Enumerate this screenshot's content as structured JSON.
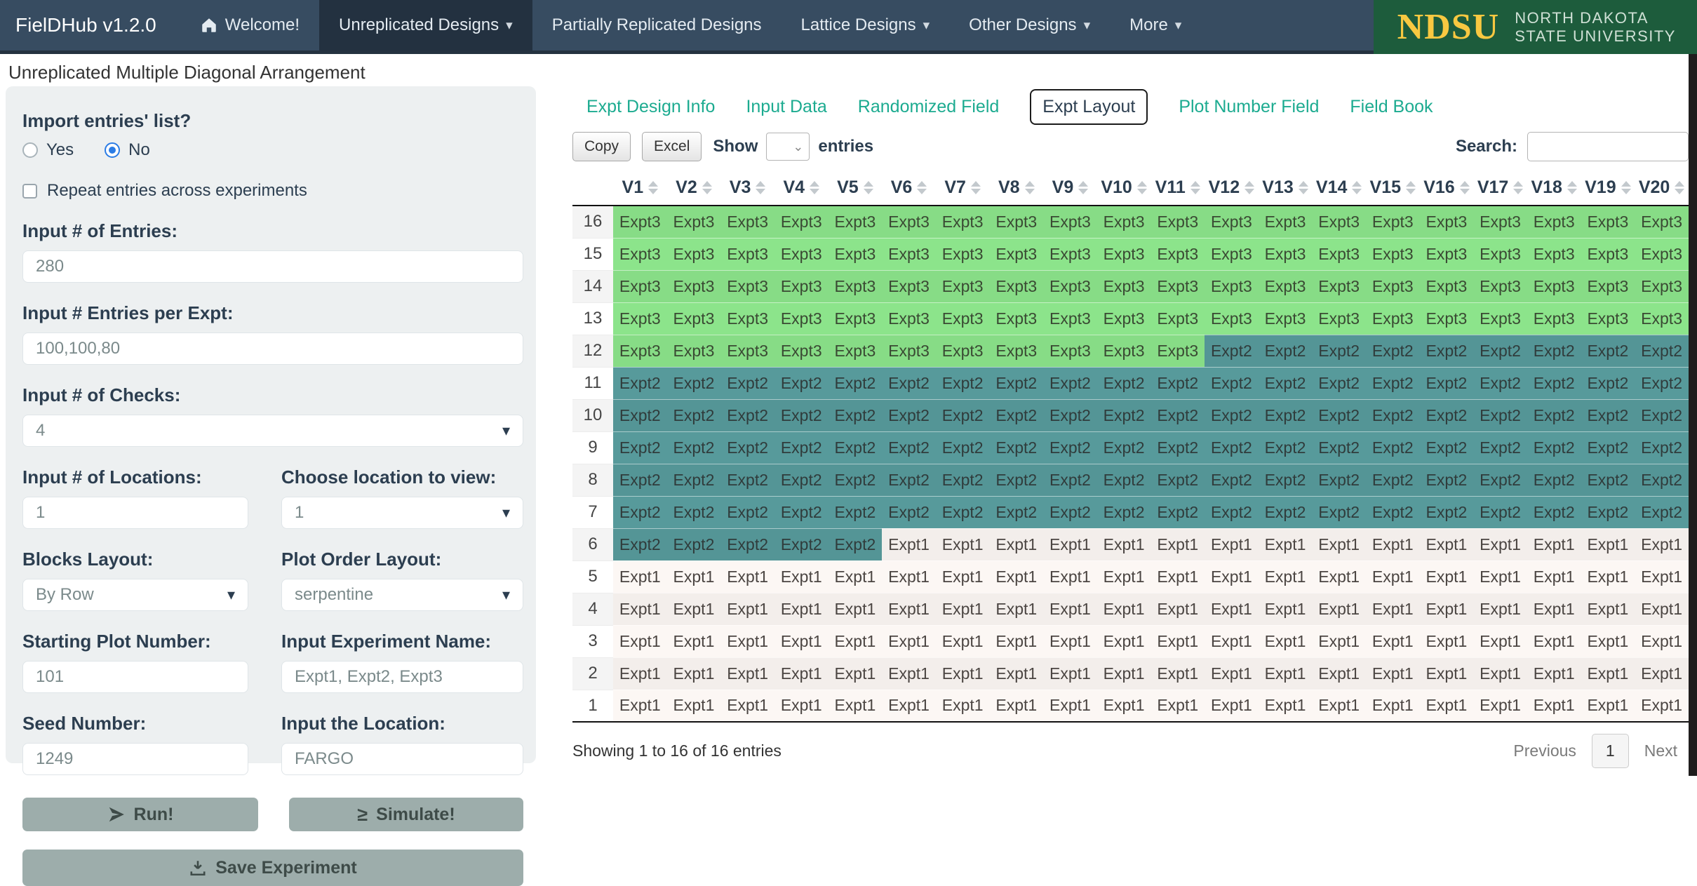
{
  "colors": {
    "expt_bg": {
      "Expt1": "#fcf7f4",
      "Expt2": "#579a9b",
      "Expt3": "#8ce48b"
    },
    "expt_fg": {
      "Expt1": "#4b4542",
      "Expt2": "#303c3c",
      "Expt3": "#3a4a33"
    },
    "accent_teal": "#1cab90",
    "navbar_bg": "#374c61",
    "ndsu_green": "#1d5c3c",
    "ndsu_yellow": "#f8c841"
  },
  "navbar": {
    "brand": "FielDHub v1.2.0",
    "items": [
      {
        "label": "Welcome!",
        "caret": ""
      },
      {
        "label": "Unreplicated Designs",
        "caret": "▾"
      },
      {
        "label": "Partially Replicated Designs",
        "caret": ""
      },
      {
        "label": "Lattice Designs",
        "caret": "▾"
      },
      {
        "label": "Other Designs",
        "caret": "▾"
      },
      {
        "label": "More",
        "caret": "▾"
      }
    ],
    "logo": {
      "acronym": "NDSU",
      "line1": "NORTH DAKOTA",
      "line2": "STATE UNIVERSITY"
    }
  },
  "page_title": "Unreplicated Multiple Diagonal Arrangement",
  "sidebar": {
    "import_question": "Import entries' list?",
    "radio_yes": "Yes",
    "radio_no": "No",
    "repeat_label": "Repeat entries across experiments",
    "entries": {
      "label": "Input # of Entries:",
      "value": "280"
    },
    "entries_per_expt": {
      "label": "Input # Entries per Expt:",
      "value": "100,100,80"
    },
    "checks": {
      "label": "Input # of Checks:",
      "value": "4"
    },
    "locations": {
      "label": "Input # of Locations:",
      "value": "1"
    },
    "view_location": {
      "label": "Choose location to view:",
      "value": "1"
    },
    "blocks_layout": {
      "label": "Blocks Layout:",
      "value": "By Row"
    },
    "plot_order": {
      "label": "Plot Order Layout:",
      "value": "serpentine"
    },
    "starting_plot": {
      "label": "Starting Plot Number:",
      "value": "101"
    },
    "expt_name": {
      "label": "Input Experiment Name:",
      "value": "Expt1, Expt2, Expt3"
    },
    "seed": {
      "label": "Seed Number:",
      "value": "1249"
    },
    "location": {
      "label": "Input the Location:",
      "value": "FARGO"
    },
    "buttons": {
      "run": "Run!",
      "simulate": "Simulate!",
      "save": "Save Experiment"
    }
  },
  "tabs": {
    "items": [
      {
        "label": "Expt Design Info"
      },
      {
        "label": "Input Data"
      },
      {
        "label": "Randomized Field"
      },
      {
        "label": "Expt Layout"
      },
      {
        "label": "Plot Number Field"
      },
      {
        "label": "Field Book"
      }
    ],
    "active": "Expt Layout"
  },
  "controls": {
    "copy": "Copy",
    "excel": "Excel",
    "show_label": "Show",
    "entries_label": "entries",
    "search_label": "Search:"
  },
  "table": {
    "columns": [
      "V1",
      "V2",
      "V3",
      "V4",
      "V5",
      "V6",
      "V7",
      "V8",
      "V9",
      "V10",
      "V11",
      "V12",
      "V13",
      "V14",
      "V15",
      "V16",
      "V17",
      "V18",
      "V19",
      "V20"
    ],
    "rows": [
      {
        "num": "16",
        "cells": [
          "Expt3",
          "Expt3",
          "Expt3",
          "Expt3",
          "Expt3",
          "Expt3",
          "Expt3",
          "Expt3",
          "Expt3",
          "Expt3",
          "Expt3",
          "Expt3",
          "Expt3",
          "Expt3",
          "Expt3",
          "Expt3",
          "Expt3",
          "Expt3",
          "Expt3",
          "Expt3"
        ]
      },
      {
        "num": "15",
        "cells": [
          "Expt3",
          "Expt3",
          "Expt3",
          "Expt3",
          "Expt3",
          "Expt3",
          "Expt3",
          "Expt3",
          "Expt3",
          "Expt3",
          "Expt3",
          "Expt3",
          "Expt3",
          "Expt3",
          "Expt3",
          "Expt3",
          "Expt3",
          "Expt3",
          "Expt3",
          "Expt3"
        ]
      },
      {
        "num": "14",
        "cells": [
          "Expt3",
          "Expt3",
          "Expt3",
          "Expt3",
          "Expt3",
          "Expt3",
          "Expt3",
          "Expt3",
          "Expt3",
          "Expt3",
          "Expt3",
          "Expt3",
          "Expt3",
          "Expt3",
          "Expt3",
          "Expt3",
          "Expt3",
          "Expt3",
          "Expt3",
          "Expt3"
        ]
      },
      {
        "num": "13",
        "cells": [
          "Expt3",
          "Expt3",
          "Expt3",
          "Expt3",
          "Expt3",
          "Expt3",
          "Expt3",
          "Expt3",
          "Expt3",
          "Expt3",
          "Expt3",
          "Expt3",
          "Expt3",
          "Expt3",
          "Expt3",
          "Expt3",
          "Expt3",
          "Expt3",
          "Expt3",
          "Expt3"
        ]
      },
      {
        "num": "12",
        "cells": [
          "Expt3",
          "Expt3",
          "Expt3",
          "Expt3",
          "Expt3",
          "Expt3",
          "Expt3",
          "Expt3",
          "Expt3",
          "Expt3",
          "Expt3",
          "Expt2",
          "Expt2",
          "Expt2",
          "Expt2",
          "Expt2",
          "Expt2",
          "Expt2",
          "Expt2",
          "Expt2"
        ]
      },
      {
        "num": "11",
        "cells": [
          "Expt2",
          "Expt2",
          "Expt2",
          "Expt2",
          "Expt2",
          "Expt2",
          "Expt2",
          "Expt2",
          "Expt2",
          "Expt2",
          "Expt2",
          "Expt2",
          "Expt2",
          "Expt2",
          "Expt2",
          "Expt2",
          "Expt2",
          "Expt2",
          "Expt2",
          "Expt2"
        ]
      },
      {
        "num": "10",
        "cells": [
          "Expt2",
          "Expt2",
          "Expt2",
          "Expt2",
          "Expt2",
          "Expt2",
          "Expt2",
          "Expt2",
          "Expt2",
          "Expt2",
          "Expt2",
          "Expt2",
          "Expt2",
          "Expt2",
          "Expt2",
          "Expt2",
          "Expt2",
          "Expt2",
          "Expt2",
          "Expt2"
        ]
      },
      {
        "num": "9",
        "cells": [
          "Expt2",
          "Expt2",
          "Expt2",
          "Expt2",
          "Expt2",
          "Expt2",
          "Expt2",
          "Expt2",
          "Expt2",
          "Expt2",
          "Expt2",
          "Expt2",
          "Expt2",
          "Expt2",
          "Expt2",
          "Expt2",
          "Expt2",
          "Expt2",
          "Expt2",
          "Expt2"
        ]
      },
      {
        "num": "8",
        "cells": [
          "Expt2",
          "Expt2",
          "Expt2",
          "Expt2",
          "Expt2",
          "Expt2",
          "Expt2",
          "Expt2",
          "Expt2",
          "Expt2",
          "Expt2",
          "Expt2",
          "Expt2",
          "Expt2",
          "Expt2",
          "Expt2",
          "Expt2",
          "Expt2",
          "Expt2",
          "Expt2"
        ]
      },
      {
        "num": "7",
        "cells": [
          "Expt2",
          "Expt2",
          "Expt2",
          "Expt2",
          "Expt2",
          "Expt2",
          "Expt2",
          "Expt2",
          "Expt2",
          "Expt2",
          "Expt2",
          "Expt2",
          "Expt2",
          "Expt2",
          "Expt2",
          "Expt2",
          "Expt2",
          "Expt2",
          "Expt2",
          "Expt2"
        ]
      },
      {
        "num": "6",
        "cells": [
          "Expt2",
          "Expt2",
          "Expt2",
          "Expt2",
          "Expt2",
          "Expt1",
          "Expt1",
          "Expt1",
          "Expt1",
          "Expt1",
          "Expt1",
          "Expt1",
          "Expt1",
          "Expt1",
          "Expt1",
          "Expt1",
          "Expt1",
          "Expt1",
          "Expt1",
          "Expt1"
        ]
      },
      {
        "num": "5",
        "cells": [
          "Expt1",
          "Expt1",
          "Expt1",
          "Expt1",
          "Expt1",
          "Expt1",
          "Expt1",
          "Expt1",
          "Expt1",
          "Expt1",
          "Expt1",
          "Expt1",
          "Expt1",
          "Expt1",
          "Expt1",
          "Expt1",
          "Expt1",
          "Expt1",
          "Expt1",
          "Expt1"
        ]
      },
      {
        "num": "4",
        "cells": [
          "Expt1",
          "Expt1",
          "Expt1",
          "Expt1",
          "Expt1",
          "Expt1",
          "Expt1",
          "Expt1",
          "Expt1",
          "Expt1",
          "Expt1",
          "Expt1",
          "Expt1",
          "Expt1",
          "Expt1",
          "Expt1",
          "Expt1",
          "Expt1",
          "Expt1",
          "Expt1"
        ]
      },
      {
        "num": "3",
        "cells": [
          "Expt1",
          "Expt1",
          "Expt1",
          "Expt1",
          "Expt1",
          "Expt1",
          "Expt1",
          "Expt1",
          "Expt1",
          "Expt1",
          "Expt1",
          "Expt1",
          "Expt1",
          "Expt1",
          "Expt1",
          "Expt1",
          "Expt1",
          "Expt1",
          "Expt1",
          "Expt1"
        ]
      },
      {
        "num": "2",
        "cells": [
          "Expt1",
          "Expt1",
          "Expt1",
          "Expt1",
          "Expt1",
          "Expt1",
          "Expt1",
          "Expt1",
          "Expt1",
          "Expt1",
          "Expt1",
          "Expt1",
          "Expt1",
          "Expt1",
          "Expt1",
          "Expt1",
          "Expt1",
          "Expt1",
          "Expt1",
          "Expt1"
        ]
      },
      {
        "num": "1",
        "cells": [
          "Expt1",
          "Expt1",
          "Expt1",
          "Expt1",
          "Expt1",
          "Expt1",
          "Expt1",
          "Expt1",
          "Expt1",
          "Expt1",
          "Expt1",
          "Expt1",
          "Expt1",
          "Expt1",
          "Expt1",
          "Expt1",
          "Expt1",
          "Expt1",
          "Expt1",
          "Expt1"
        ]
      }
    ]
  },
  "footer": {
    "info": "Showing 1 to 16 of 16 entries",
    "previous": "Previous",
    "current_page": "1",
    "next": "Next"
  }
}
